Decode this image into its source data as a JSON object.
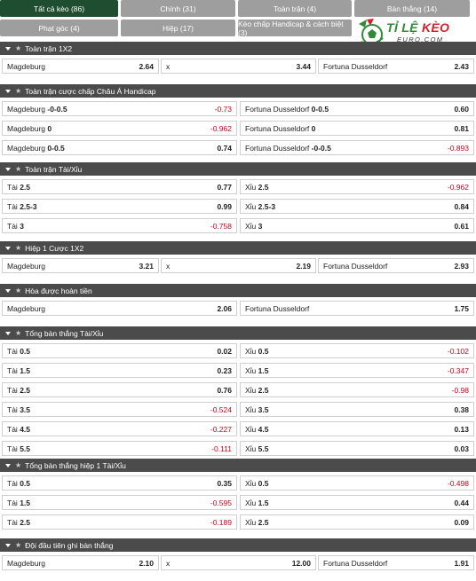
{
  "tabs": [
    {
      "label": "Tất cả kèo (86)",
      "active": true
    },
    {
      "label": "Chính (31)"
    },
    {
      "label": "Toàn trận (4)"
    },
    {
      "label": "Bàn thắng (14)"
    },
    {
      "label": "Phạt góc (4)"
    },
    {
      "label": "Hiệp (17)"
    },
    {
      "label": "Kèo chấp Handicap & cách biệt (3)"
    }
  ],
  "logo": {
    "brand_a": "TỈ LỆ",
    "brand_b": "KÈO",
    "sub": "EURO.COM"
  },
  "sections": [
    {
      "title": "Toàn trận 1X2",
      "layout": "three",
      "rows": [
        [
          {
            "label": "Magdeburg",
            "odd": "2.64"
          },
          {
            "label": "x",
            "odd": "3.44"
          },
          {
            "label": "Fortuna Dusseldorf",
            "odd": "2.43"
          }
        ]
      ]
    },
    {
      "title": "Toàn trận cược chấp Châu Á Handicap",
      "layout": "two",
      "rows": [
        [
          {
            "label": "Magdeburg",
            "line": "-0-0.5",
            "odd": "-0.73"
          },
          {
            "label": "Fortuna Dusseldorf",
            "line": "0-0.5",
            "odd": "0.60"
          }
        ],
        [
          {
            "label": "Magdeburg",
            "line": "0",
            "odd": "-0.962"
          },
          {
            "label": "Fortuna Dusseldorf",
            "line": "0",
            "odd": "0.81"
          }
        ],
        [
          {
            "label": "Magdeburg",
            "line": "0-0.5",
            "odd": "0.74"
          },
          {
            "label": "Fortuna Dusseldorf",
            "line": "-0-0.5",
            "odd": "-0.893"
          }
        ]
      ]
    },
    {
      "title": "Toàn trận Tài/Xỉu",
      "layout": "two",
      "rows": [
        [
          {
            "label": "Tài",
            "line": "2.5",
            "odd": "0.77"
          },
          {
            "label": "Xỉu",
            "line": "2.5",
            "odd": "-0.962"
          }
        ],
        [
          {
            "label": "Tài",
            "line": "2.5-3",
            "odd": "0.99"
          },
          {
            "label": "Xỉu",
            "line": "2.5-3",
            "odd": "0.84"
          }
        ],
        [
          {
            "label": "Tài",
            "line": "3",
            "odd": "-0.758"
          },
          {
            "label": "Xỉu",
            "line": "3",
            "odd": "0.61"
          }
        ]
      ]
    },
    {
      "title": "Hiệp 1 Cược 1X2",
      "layout": "three",
      "rows": [
        [
          {
            "label": "Magdeburg",
            "odd": "3.21"
          },
          {
            "label": "x",
            "odd": "2.19"
          },
          {
            "label": "Fortuna Dusseldorf",
            "odd": "2.93"
          }
        ]
      ]
    },
    {
      "title": "Hòa được hoàn tiền",
      "layout": "two",
      "rows": [
        [
          {
            "label": "Magdeburg",
            "odd": "2.06"
          },
          {
            "label": "Fortuna Dusseldorf",
            "odd": "1.75"
          }
        ]
      ]
    },
    {
      "title": "Tổng bàn thắng Tài/Xỉu",
      "layout": "two",
      "rows": [
        [
          {
            "label": "Tài",
            "line": "0.5",
            "odd": "0.02"
          },
          {
            "label": "Xỉu",
            "line": "0.5",
            "odd": "-0.102"
          }
        ],
        [
          {
            "label": "Tài",
            "line": "1.5",
            "odd": "0.23"
          },
          {
            "label": "Xỉu",
            "line": "1.5",
            "odd": "-0.347"
          }
        ],
        [
          {
            "label": "Tài",
            "line": "2.5",
            "odd": "0.76"
          },
          {
            "label": "Xỉu",
            "line": "2.5",
            "odd": "-0.98"
          }
        ],
        [
          {
            "label": "Tài",
            "line": "3.5",
            "odd": "-0.524"
          },
          {
            "label": "Xỉu",
            "line": "3.5",
            "odd": "0.38"
          }
        ],
        [
          {
            "label": "Tài",
            "line": "4.5",
            "odd": "-0.227"
          },
          {
            "label": "Xỉu",
            "line": "4.5",
            "odd": "0.13"
          }
        ],
        [
          {
            "label": "Tài",
            "line": "5.5",
            "odd": "-0.111"
          },
          {
            "label": "Xỉu",
            "line": "5.5",
            "odd": "0.03"
          }
        ]
      ]
    },
    {
      "title": "Tổng bàn thắng hiệp 1 Tài/Xỉu",
      "layout": "two",
      "rows": [
        [
          {
            "label": "Tài",
            "line": "0.5",
            "odd": "0.35"
          },
          {
            "label": "Xỉu",
            "line": "0.5",
            "odd": "-0.498"
          }
        ],
        [
          {
            "label": "Tài",
            "line": "1.5",
            "odd": "-0.595"
          },
          {
            "label": "Xỉu",
            "line": "1.5",
            "odd": "0.44"
          }
        ],
        [
          {
            "label": "Tài",
            "line": "2.5",
            "odd": "-0.189"
          },
          {
            "label": "Xỉu",
            "line": "2.5",
            "odd": "0.09"
          }
        ]
      ]
    },
    {
      "title": "Đội đầu tiên ghi bàn thắng",
      "layout": "three",
      "rows": [
        [
          {
            "label": "Magdeburg",
            "odd": "2.10"
          },
          {
            "label": "x",
            "odd": "12.00"
          },
          {
            "label": "Fortuna Dusseldorf",
            "odd": "1.91"
          }
        ]
      ]
    }
  ],
  "colors": {
    "header_bg": "#4b4b4b",
    "tab_active": "#1e4d2f",
    "tab_inactive": "#9e9e9e",
    "negative": "#d0021b"
  }
}
